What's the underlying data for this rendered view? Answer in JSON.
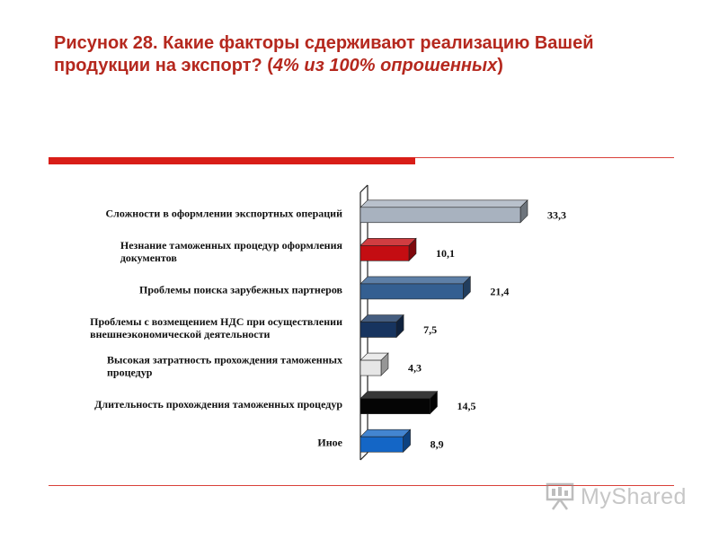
{
  "header": {
    "title_main": "Рисунок 28. Какие факторы сдерживают реализацию Вашей продукции на экспорт? (",
    "title_note": "4% из 100% опрошенных",
    "title_close": ")"
  },
  "chart_data": {
    "type": "bar",
    "orientation": "horizontal",
    "categories": [
      "Сложности в оформлении экспортных операций",
      "Незнание таможенных процедур оформления документов",
      "Проблемы поиска зарубежных партнеров",
      "Проблемы с возмещением НДС при осуществлении внешнеэкономической деятельности",
      "Высокая затратность прохождения таможенных процедур",
      "Длительность прохождения таможенных процедур",
      "Иное"
    ],
    "category_lines": [
      [
        "Сложности в оформлении экспортных операций"
      ],
      [
        "Незнание таможенных процедур оформления",
        "документов"
      ],
      [
        "Проблемы поиска зарубежных партнеров"
      ],
      [
        "Проблемы с возмещением НДС при осуществлении",
        "внешнеэкономической деятельности"
      ],
      [
        "Высокая затратность прохождения таможенных",
        "процедур"
      ],
      [
        "Длительность прохождения таможенных процедур"
      ],
      [
        "Иное"
      ]
    ],
    "values": [
      33.3,
      10.1,
      21.4,
      7.5,
      4.3,
      14.5,
      8.9
    ],
    "value_labels": [
      "33,3",
      "10,1",
      "21,4",
      "7,5",
      "4,3",
      "14,5",
      "8,9"
    ],
    "colors": [
      "#a8b2bf",
      "#c40d12",
      "#345f91",
      "#17345f",
      "#e6e6e6",
      "#050505",
      "#1466c6"
    ],
    "xlim": [
      0,
      33.3
    ],
    "grid": false,
    "legend": "none"
  },
  "watermark": {
    "text": "MyShared",
    "icon": "presentation-icon"
  }
}
